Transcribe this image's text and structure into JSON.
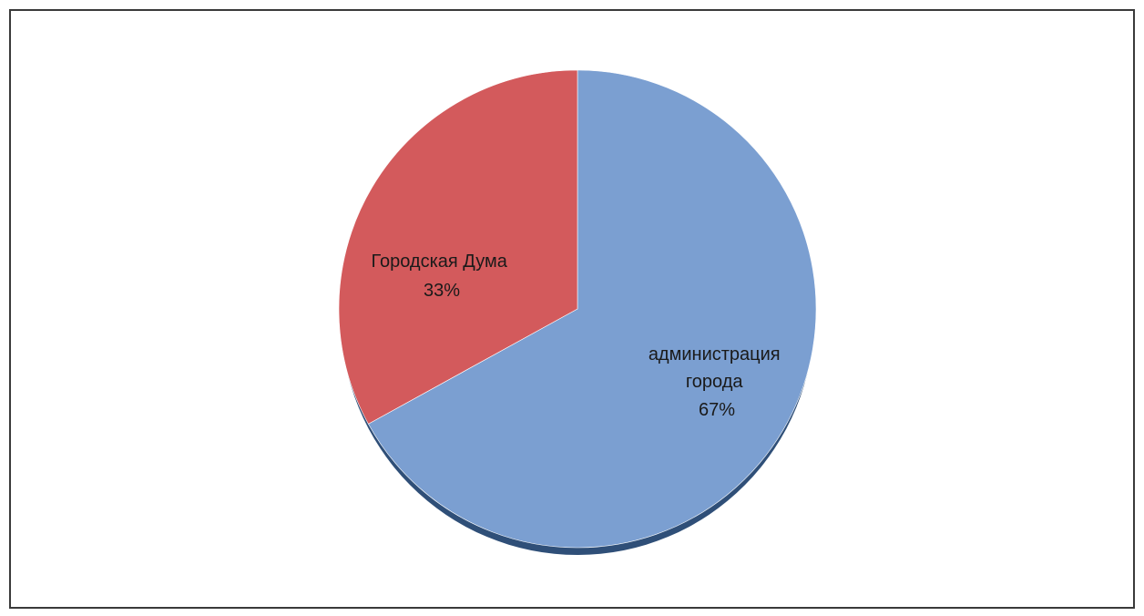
{
  "chart_data": {
    "type": "pie",
    "categories": [
      "администрация города",
      "Городская Дума"
    ],
    "values": [
      67,
      33
    ],
    "colors": [
      "#7b9fd1",
      "#d35a5c"
    ],
    "shadow_color": "#2f4f78",
    "data_labels": [
      {
        "lines": [
          "администрация",
          "города",
          "67%"
        ]
      },
      {
        "lines": [
          "Городская Дума",
          "33%"
        ]
      }
    ]
  }
}
